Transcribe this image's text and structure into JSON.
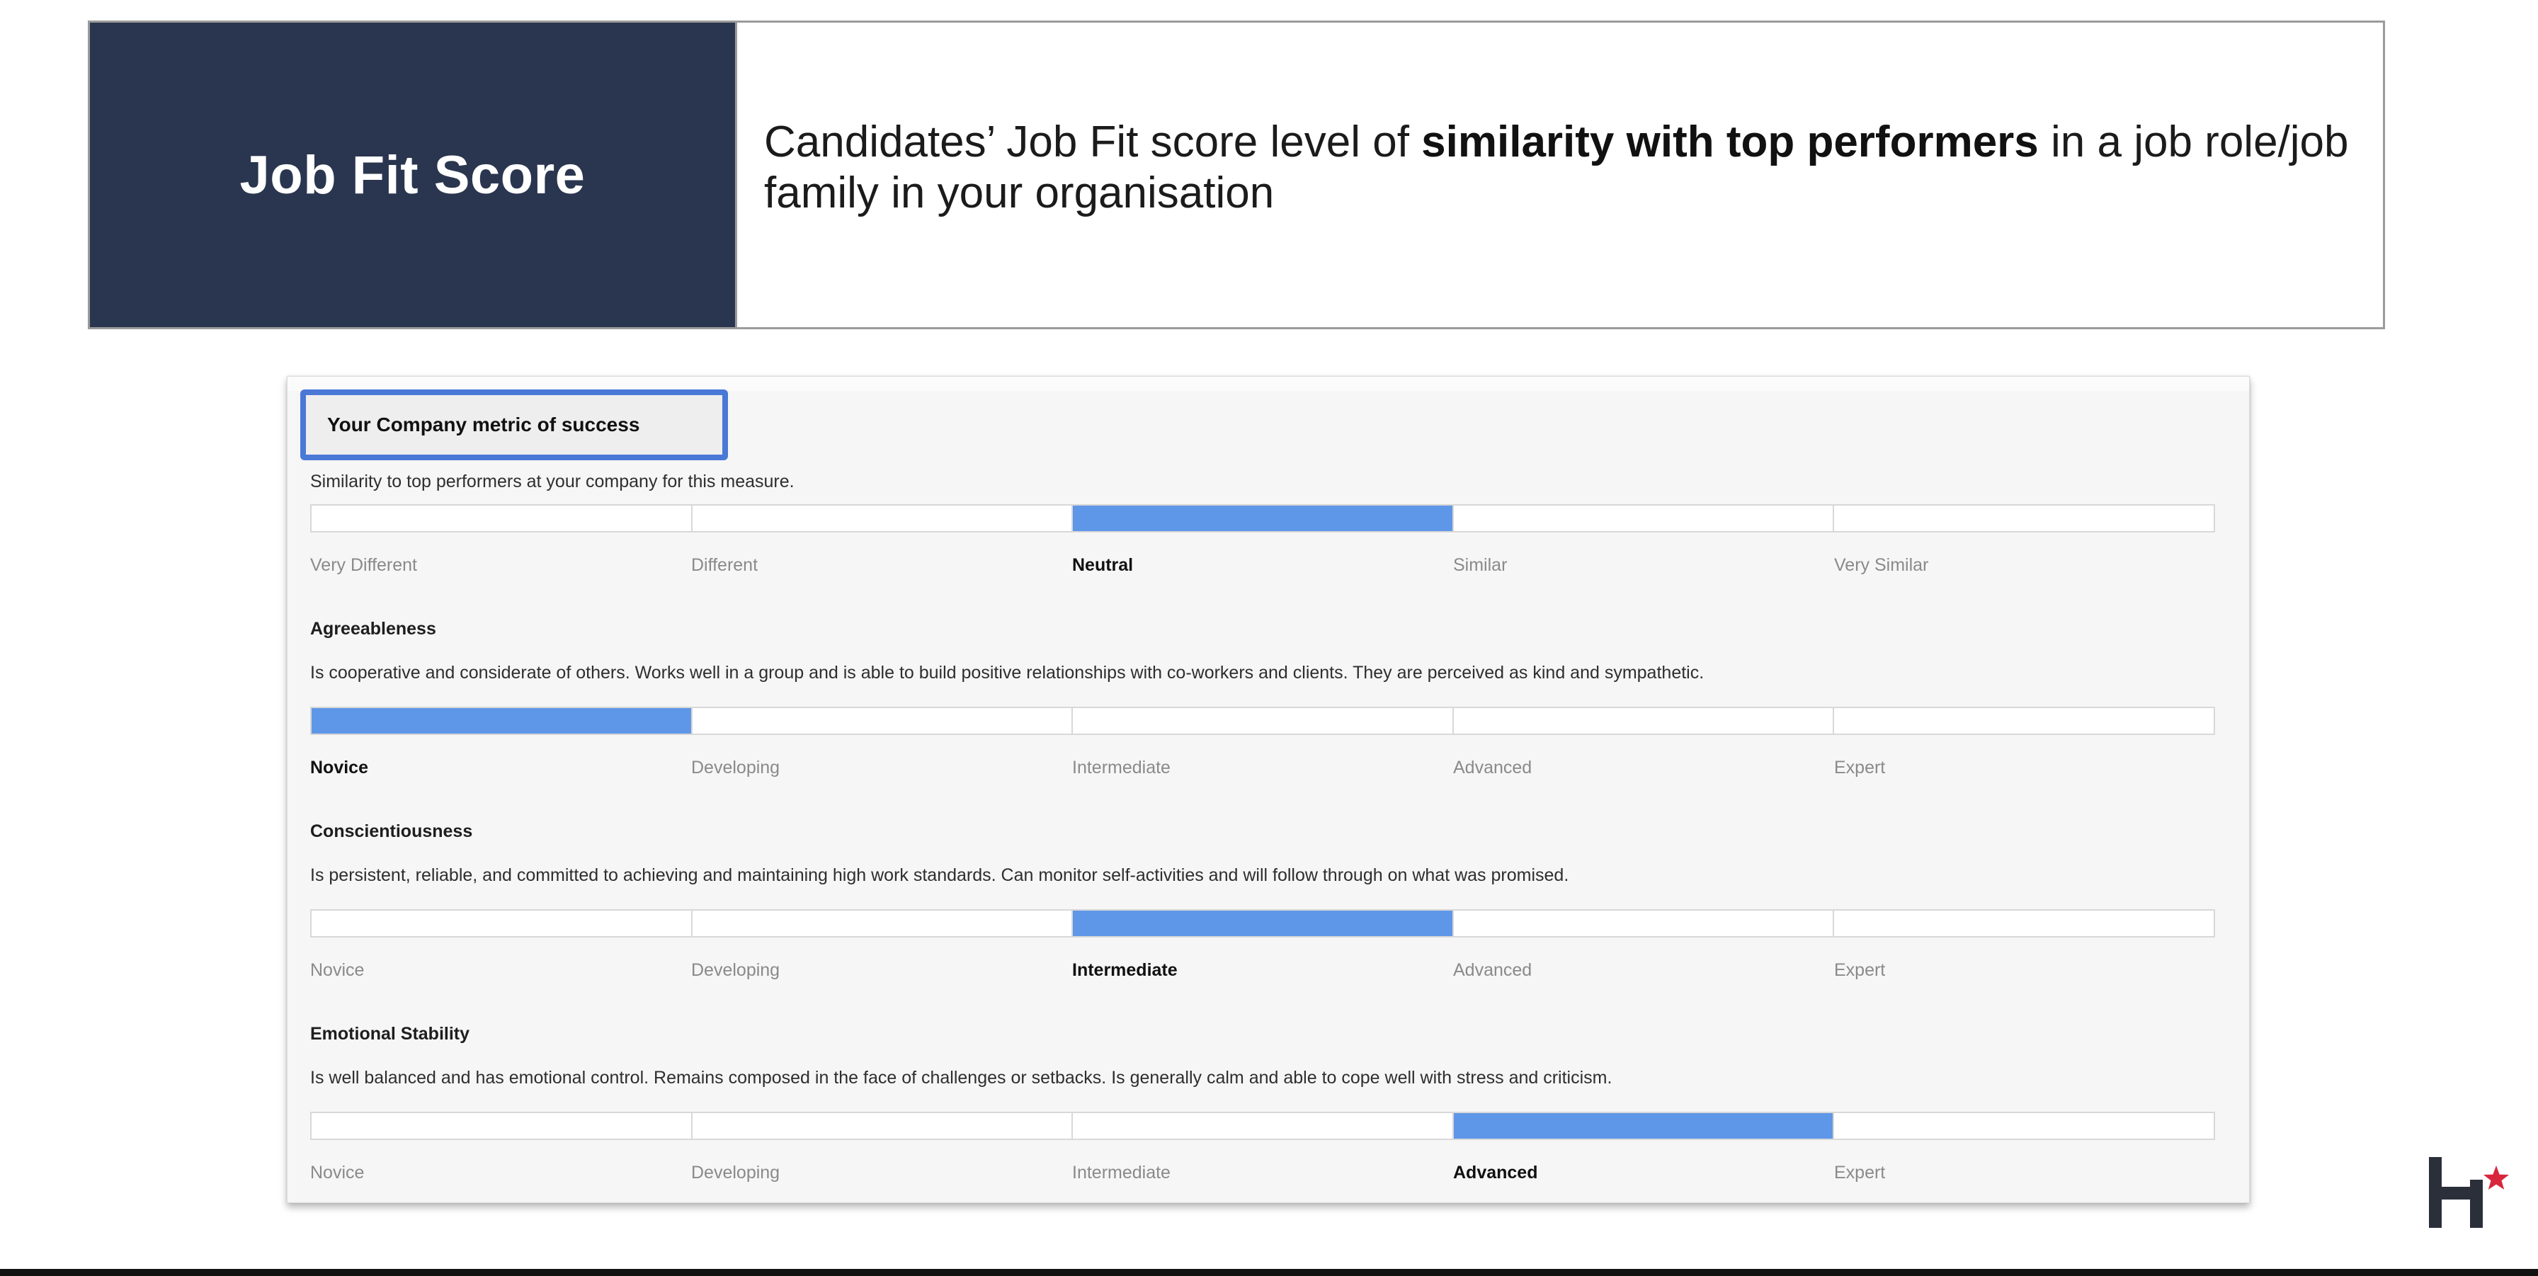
{
  "header": {
    "title": "Job Fit Score",
    "description_pre": "Candidates’ Job Fit score level of ",
    "description_bold": "similarity with top performers",
    "description_post": " in a job role/job family in your organisation"
  },
  "report": {
    "metric_box_title": "Your Company metric of success",
    "metric_description": "Similarity to top performers at your company for this measure.",
    "metric": {
      "scale": [
        "Very Different",
        "Different",
        "Neutral",
        "Similar",
        "Very Similar"
      ],
      "selected_index": 2,
      "selected_label": "Neutral"
    },
    "traits": [
      {
        "title": "Agreeableness",
        "description": "Is cooperative and considerate of others. Works well in a group and is able to build positive relationships with co-workers and clients. They are perceived as kind and sympathetic.",
        "scale": [
          "Novice",
          "Developing",
          "Intermediate",
          "Advanced",
          "Expert"
        ],
        "selected_index": 0,
        "selected_label": "Novice"
      },
      {
        "title": "Conscientiousness",
        "description": "Is persistent, reliable, and committed to achieving and maintaining high work standards. Can monitor self-activities and will follow through on what was promised.",
        "scale": [
          "Novice",
          "Developing",
          "Intermediate",
          "Advanced",
          "Expert"
        ],
        "selected_index": 2,
        "selected_label": "Intermediate"
      },
      {
        "title": "Emotional Stability",
        "description": "Is well balanced and has emotional control. Remains composed in the face of challenges or setbacks. Is generally calm and able to cope well with stress and criticism.",
        "scale": [
          "Novice",
          "Developing",
          "Intermediate",
          "Advanced",
          "Expert"
        ],
        "selected_index": 3,
        "selected_label": "Advanced"
      }
    ]
  },
  "logo": {
    "icon": "h-star-logo-icon",
    "letter_color": "#2b2f3a",
    "star_color": "#d8263d"
  },
  "colors": {
    "banner_bg": "#2a364f",
    "bar_fill": "#5f97e8",
    "highlight_border": "#4a78d6"
  }
}
